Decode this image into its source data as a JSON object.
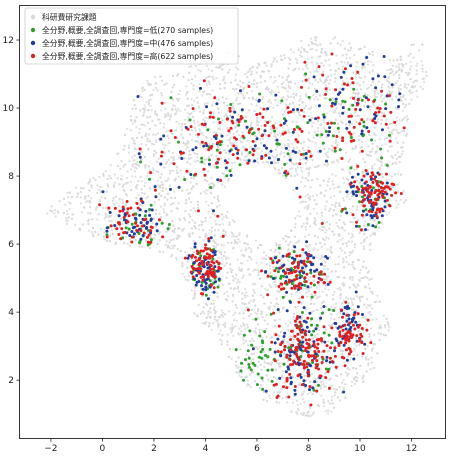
{
  "chart_data": {
    "type": "scatter",
    "xlim": [
      -3.2,
      13.3
    ],
    "ylim": [
      0.3,
      13.0
    ],
    "xticks": [
      -2,
      0,
      2,
      4,
      6,
      8,
      10,
      12
    ],
    "yticks": [
      2,
      4,
      6,
      8,
      10,
      12
    ],
    "xtick_labels": [
      "−2",
      "0",
      "2",
      "4",
      "6",
      "8",
      "10",
      "12"
    ],
    "ytick_labels": [
      "2",
      "4",
      "6",
      "8",
      "10",
      "12"
    ],
    "grid": false,
    "legend_position": "top-left",
    "background_series": {
      "name": "科研費研究課題",
      "color": "#d9d9d9",
      "region_outline": [
        [
          -1.8,
          7.3
        ],
        [
          -0.8,
          7.8
        ],
        [
          0.2,
          8.2
        ],
        [
          0.8,
          9.0
        ],
        [
          1.2,
          10.2
        ],
        [
          1.8,
          11.0
        ],
        [
          2.6,
          10.9
        ],
        [
          3.6,
          11.3
        ],
        [
          4.8,
          11.7
        ],
        [
          6.0,
          11.3
        ],
        [
          7.0,
          11.7
        ],
        [
          8.0,
          12.1
        ],
        [
          9.0,
          12.1
        ],
        [
          10.2,
          11.8
        ],
        [
          11.3,
          11.5
        ],
        [
          12.4,
          12.1
        ],
        [
          12.7,
          11.0
        ],
        [
          12.0,
          9.8
        ],
        [
          11.6,
          8.3
        ],
        [
          11.8,
          7.2
        ],
        [
          11.0,
          6.8
        ],
        [
          10.4,
          6.0
        ],
        [
          10.6,
          4.8
        ],
        [
          11.2,
          3.6
        ],
        [
          10.6,
          2.4
        ],
        [
          9.8,
          1.6
        ],
        [
          8.8,
          1.0
        ],
        [
          7.6,
          0.9
        ],
        [
          6.8,
          1.3
        ],
        [
          5.8,
          1.5
        ],
        [
          5.2,
          2.2
        ],
        [
          4.6,
          3.0
        ],
        [
          4.3,
          3.4
        ],
        [
          3.6,
          3.8
        ],
        [
          3.3,
          4.8
        ],
        [
          2.8,
          5.6
        ],
        [
          2.0,
          5.8
        ],
        [
          1.0,
          5.9
        ],
        [
          0.0,
          6.1
        ],
        [
          -1.0,
          6.4
        ],
        [
          -2.2,
          6.9
        ]
      ],
      "hole_outline": [
        [
          4.6,
          7.4
        ],
        [
          5.2,
          8.3
        ],
        [
          6.2,
          8.4
        ],
        [
          7.0,
          8.0
        ],
        [
          7.6,
          7.3
        ],
        [
          7.2,
          6.3
        ],
        [
          6.4,
          6.0
        ],
        [
          5.6,
          6.3
        ],
        [
          5.0,
          6.8
        ]
      ]
    },
    "series": [
      {
        "name": "全分野,概要,全調査回,専門度=低(270 samples)",
        "color": "#2ca02c",
        "clusters": [
          {
            "center": [
              4.0,
              5.2
            ],
            "spread": [
              0.45,
              0.6
            ],
            "count": 30
          },
          {
            "center": [
              8.0,
              3.2
            ],
            "spread": [
              1.0,
              1.1
            ],
            "count": 45
          },
          {
            "center": [
              10.2,
              7.4
            ],
            "spread": [
              0.7,
              0.7
            ],
            "count": 25
          },
          {
            "center": [
              1.4,
              6.4
            ],
            "spread": [
              0.9,
              0.6
            ],
            "count": 25
          },
          {
            "center": [
              9.5,
              9.5
            ],
            "spread": [
              1.4,
              1.2
            ],
            "count": 35
          },
          {
            "center": [
              7.5,
              5.2
            ],
            "spread": [
              0.9,
              0.5
            ],
            "count": 30
          },
          {
            "center": [
              5.0,
              9.0
            ],
            "spread": [
              2.5,
              1.4
            ],
            "count": 45
          },
          {
            "center": [
              6.0,
              2.6
            ],
            "spread": [
              0.6,
              0.8
            ],
            "count": 35
          }
        ]
      },
      {
        "name": "全分野,概要,全調査回,専門度=中(476 samples)",
        "color": "#1f3d99",
        "clusters": [
          {
            "center": [
              4.0,
              5.3
            ],
            "spread": [
              0.45,
              0.7
            ],
            "count": 60
          },
          {
            "center": [
              7.8,
              2.8
            ],
            "spread": [
              1.1,
              1.1
            ],
            "count": 90
          },
          {
            "center": [
              9.6,
              3.6
            ],
            "spread": [
              0.5,
              0.7
            ],
            "count": 45
          },
          {
            "center": [
              10.4,
              7.3
            ],
            "spread": [
              0.7,
              0.7
            ],
            "count": 55
          },
          {
            "center": [
              1.3,
              6.6
            ],
            "spread": [
              0.9,
              0.6
            ],
            "count": 45
          },
          {
            "center": [
              7.6,
              5.2
            ],
            "spread": [
              0.9,
              0.6
            ],
            "count": 55
          },
          {
            "center": [
              9.5,
              10.0
            ],
            "spread": [
              1.8,
              1.2
            ],
            "count": 50
          },
          {
            "center": [
              5.2,
              8.8
            ],
            "spread": [
              2.6,
              1.4
            ],
            "count": 76
          }
        ]
      },
      {
        "name": "全分野,概要,全調査回,専門度=高(622 samples)",
        "color": "#e02020",
        "clusters": [
          {
            "center": [
              4.0,
              5.4
            ],
            "spread": [
              0.5,
              0.6
            ],
            "count": 75
          },
          {
            "center": [
              7.9,
              2.8
            ],
            "spread": [
              1.1,
              1.0
            ],
            "count": 130
          },
          {
            "center": [
              9.6,
              3.4
            ],
            "spread": [
              0.5,
              0.6
            ],
            "count": 55
          },
          {
            "center": [
              10.5,
              7.5
            ],
            "spread": [
              0.7,
              0.6
            ],
            "count": 80
          },
          {
            "center": [
              1.2,
              6.6
            ],
            "spread": [
              0.9,
              0.6
            ],
            "count": 50
          },
          {
            "center": [
              7.5,
              5.1
            ],
            "spread": [
              0.9,
              0.6
            ],
            "count": 70
          },
          {
            "center": [
              9.6,
              9.8
            ],
            "spread": [
              1.9,
              1.3
            ],
            "count": 62
          },
          {
            "center": [
              5.0,
              8.9
            ],
            "spread": [
              2.6,
              1.5
            ],
            "count": 100
          }
        ]
      }
    ]
  }
}
